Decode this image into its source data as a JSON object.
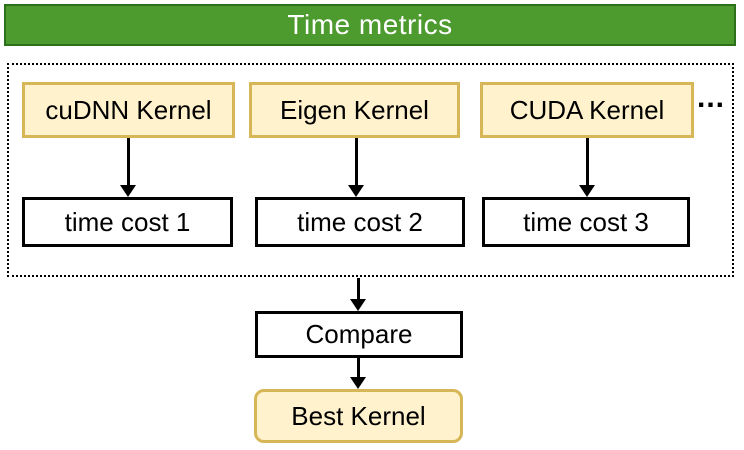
{
  "title": "Time metrics",
  "flow": {
    "kernels": [
      {
        "label": "cuDNN Kernel",
        "cost_label": "time cost 1"
      },
      {
        "label": "Eigen Kernel",
        "cost_label": "time cost 2"
      },
      {
        "label": "CUDA Kernel",
        "cost_label": "time cost 3"
      }
    ],
    "ellipsis": "...",
    "compare_label": "Compare",
    "best_kernel_label": "Best Kernel"
  },
  "colors": {
    "banner_fill": "#4D9B2F",
    "banner_border": "#2D701C",
    "title_text": "#FFFFFF",
    "kernel_fill": "#FFF2CC",
    "kernel_border": "#D6B656",
    "arrow": "#000000"
  }
}
